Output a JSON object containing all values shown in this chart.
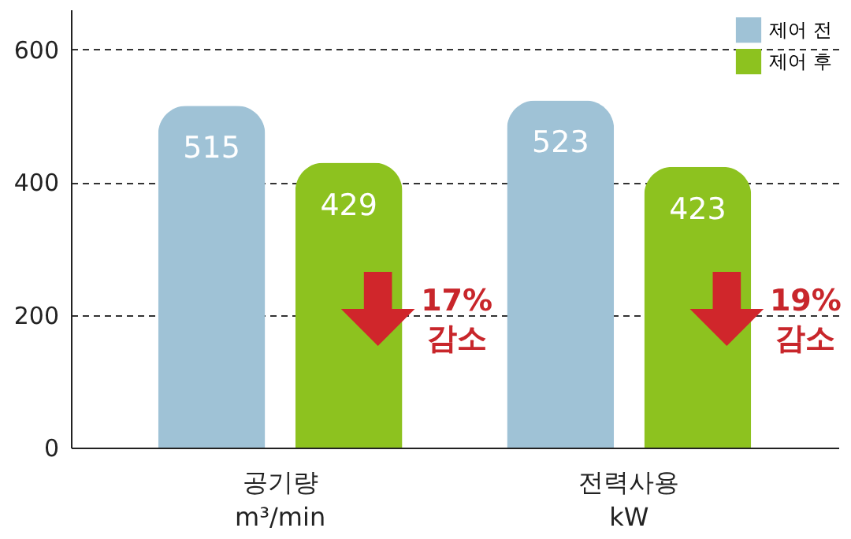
{
  "chart_data": {
    "type": "bar",
    "categories": [
      "공기량\nm³/min",
      "전력사용\nkW"
    ],
    "series": [
      {
        "name": "제어 전",
        "color": "#9fc2d6",
        "values": [
          515,
          523
        ]
      },
      {
        "name": "제어 후",
        "color": "#8dc21f",
        "values": [
          429,
          423
        ]
      }
    ],
    "ylim": [
      0,
      660
    ],
    "yticks": [
      0,
      200,
      400,
      600
    ],
    "grid": "y",
    "legend": "top right",
    "data_labels": true,
    "annotations": [
      "17%\n감소",
      "19%\n감소"
    ]
  }
}
